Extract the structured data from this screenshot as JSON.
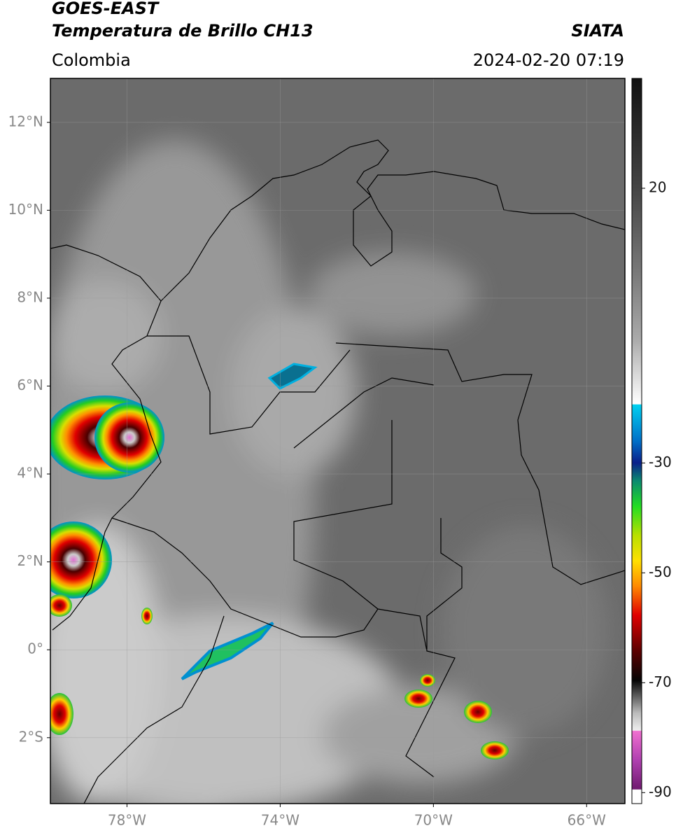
{
  "header": {
    "satellite": "GOES-EAST",
    "product": "Temperatura de Brillo CH13",
    "region": "Colombia",
    "source": "SIATA",
    "datetime": "2024-02-20 07:19"
  },
  "map": {
    "xlim": [
      -80,
      -65
    ],
    "ylim": [
      -3.5,
      13
    ],
    "xticks": [
      {
        "value": -78,
        "label": "78°W"
      },
      {
        "value": -74,
        "label": "74°W"
      },
      {
        "value": -70,
        "label": "70°W"
      },
      {
        "value": -66,
        "label": "66°W"
      }
    ],
    "yticks": [
      {
        "value": 12,
        "label": "12°N"
      },
      {
        "value": 10,
        "label": "10°N"
      },
      {
        "value": 8,
        "label": "8°N"
      },
      {
        "value": 6,
        "label": "6°N"
      },
      {
        "value": 4,
        "label": "4°N"
      },
      {
        "value": 2,
        "label": "2°N"
      },
      {
        "value": 0,
        "label": "0°"
      },
      {
        "value": -2,
        "label": "2°S"
      }
    ],
    "grid": true
  },
  "colorbar": {
    "clim": [
      -92,
      40
    ],
    "ticks": [
      20,
      -30,
      -50,
      -70,
      -90
    ]
  }
}
